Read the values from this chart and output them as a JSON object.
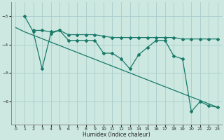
{
  "xlabel": "Humidex (Indice chaleur)",
  "bg_color": "#cce8e0",
  "grid_color": "#aacccc",
  "line_color": "#1a7a6a",
  "xlim": [
    -0.5,
    23.5
  ],
  "ylim": [
    -6.8,
    -2.5
  ],
  "yticks": [
    -6,
    -5,
    -4,
    -3
  ],
  "xticks": [
    0,
    1,
    2,
    3,
    4,
    5,
    6,
    7,
    8,
    9,
    10,
    11,
    12,
    13,
    14,
    15,
    16,
    17,
    18,
    19,
    20,
    21,
    22,
    23
  ],
  "series1_x": [
    2,
    3,
    4,
    5,
    6,
    7,
    8,
    9,
    10,
    11,
    12,
    13,
    14,
    15,
    16,
    17,
    18,
    19,
    20,
    21,
    22,
    23
  ],
  "series1_y": [
    -3.5,
    -3.5,
    -3.55,
    -3.5,
    -3.65,
    -3.65,
    -3.65,
    -3.65,
    -3.7,
    -3.75,
    -3.75,
    -3.75,
    -3.75,
    -3.75,
    -3.75,
    -3.75,
    -3.75,
    -3.8,
    -3.8,
    -3.8,
    -3.8,
    -3.8
  ],
  "series2_x": [
    1,
    2,
    3,
    4,
    5,
    6,
    7,
    8,
    9,
    10,
    11,
    12,
    13,
    14,
    15,
    16,
    17,
    18,
    19,
    20,
    21,
    22,
    23
  ],
  "series2_y": [
    -3.0,
    -3.55,
    -4.85,
    -3.6,
    -3.5,
    -3.85,
    -3.85,
    -3.85,
    -3.85,
    -4.3,
    -4.3,
    -4.5,
    -4.85,
    -4.35,
    -4.1,
    -3.85,
    -3.85,
    -4.4,
    -4.5,
    -6.35,
    -6.0,
    -6.15,
    -6.2
  ],
  "series3_x": [
    0,
    1,
    23
  ],
  "series3_y": [
    -3.4,
    -3.55,
    -6.2
  ]
}
